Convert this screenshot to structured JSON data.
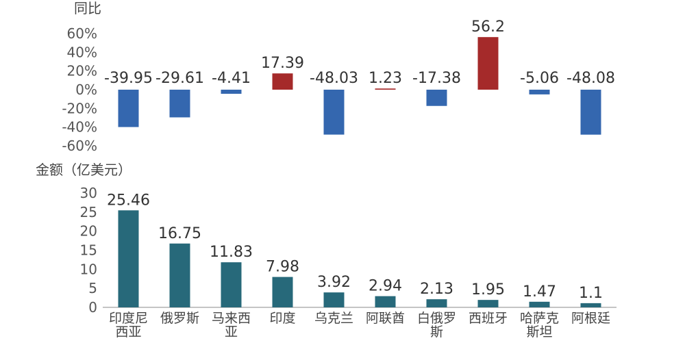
{
  "chart_data": [
    {
      "type": "bar",
      "ylabel": "同比",
      "categories": [
        "印度尼西亚",
        "俄罗斯",
        "马来西亚",
        "印度",
        "乌克兰",
        "阿联酋",
        "白俄罗斯",
        "西班牙",
        "哈萨克斯坦",
        "阿根廷"
      ],
      "values": [
        -39.95,
        -29.61,
        -4.41,
        17.39,
        -48.03,
        1.23,
        -17.38,
        56.2,
        -5.06,
        -48.08
      ],
      "value_labels": [
        "-39.95",
        "-29.61",
        "-4.41",
        "17.39",
        "-48.03",
        "1.23",
        "-17.38",
        "56.2",
        "-5.06",
        "-48.08"
      ],
      "yticks": [
        "60%",
        "40%",
        "20%",
        "0%",
        "-20%",
        "-40%",
        "-60%"
      ],
      "ylim": [
        -60,
        60
      ],
      "colors": {
        "positive": "#A52A2A",
        "negative": "#3467AF"
      }
    },
    {
      "type": "bar",
      "ylabel": "金额（亿美元）",
      "categories": [
        "印度尼西亚",
        "俄罗斯",
        "马来西亚",
        "印度",
        "乌克兰",
        "阿联酋",
        "白俄罗斯",
        "西班牙",
        "哈萨克斯坦",
        "阿根廷"
      ],
      "category_lines": [
        [
          "印度尼",
          "西亚"
        ],
        [
          "俄罗斯"
        ],
        [
          "马来西",
          "亚"
        ],
        [
          "印度"
        ],
        [
          "乌克兰"
        ],
        [
          "阿联酋"
        ],
        [
          "白俄罗",
          "斯"
        ],
        [
          "西班牙"
        ],
        [
          "哈萨克",
          "斯坦"
        ],
        [
          "阿根廷"
        ]
      ],
      "values": [
        25.46,
        16.75,
        11.83,
        7.98,
        3.92,
        2.94,
        2.13,
        1.95,
        1.47,
        1.1
      ],
      "value_labels": [
        "25.46",
        "16.75",
        "11.83",
        "7.98",
        "3.92",
        "2.94",
        "2.13",
        "1.95",
        "1.47",
        "1.1"
      ],
      "yticks": [
        "30",
        "25",
        "20",
        "15",
        "10",
        "5",
        "0"
      ],
      "ylim": [
        0,
        30
      ],
      "colors": {
        "bar": "#27697A"
      }
    }
  ]
}
